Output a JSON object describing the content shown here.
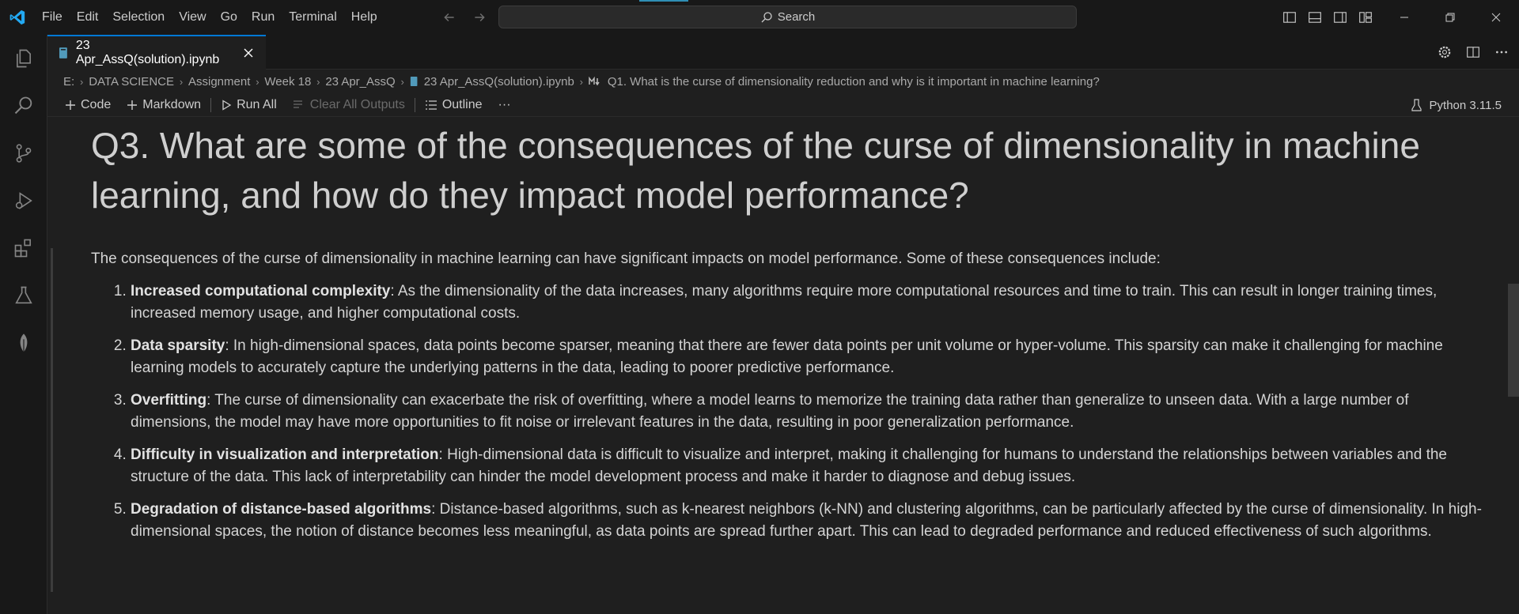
{
  "menu": [
    "File",
    "Edit",
    "Selection",
    "View",
    "Go",
    "Run",
    "Terminal",
    "Help"
  ],
  "search": {
    "label": "Search"
  },
  "tab": {
    "label": "23 Apr_AssQ(solution).ipynb"
  },
  "breadcrumb": {
    "items": [
      "E:",
      "DATA SCIENCE",
      "Assignment",
      "Week 18",
      "23 Apr_AssQ",
      "23 Apr_AssQ(solution).ipynb",
      "Q1. What is the curse of dimensionality reduction and why is it important in machine learning?"
    ]
  },
  "toolbar": {
    "code": "Code",
    "markdown": "Markdown",
    "run_all": "Run All",
    "clear_outputs": "Clear All Outputs",
    "outline": "Outline",
    "more": "···",
    "kernel": "Python 3.11.5"
  },
  "cell": {
    "heading": "Q3. What are some of the consequences of the curse of dimensionality in machine learning, and how do they impact model performance?",
    "intro": "The consequences of the curse of dimensionality in machine learning can have significant impacts on model performance. Some of these consequences include:",
    "items": [
      {
        "term": "Increased computational complexity",
        "text": ": As the dimensionality of the data increases, many algorithms require more computational resources and time to train. This can result in longer training times, increased memory usage, and higher computational costs."
      },
      {
        "term": "Data sparsity",
        "text": ": In high-dimensional spaces, data points become sparser, meaning that there are fewer data points per unit volume or hyper-volume. This sparsity can make it challenging for machine learning models to accurately capture the underlying patterns in the data, leading to poorer predictive performance."
      },
      {
        "term": "Overfitting",
        "text": ": The curse of dimensionality can exacerbate the risk of overfitting, where a model learns to memorize the training data rather than generalize to unseen data. With a large number of dimensions, the model may have more opportunities to fit noise or irrelevant features in the data, resulting in poor generalization performance."
      },
      {
        "term": "Difficulty in visualization and interpretation",
        "text": ": High-dimensional data is difficult to visualize and interpret, making it challenging for humans to understand the relationships between variables and the structure of the data. This lack of interpretability can hinder the model development process and make it harder to diagnose and debug issues."
      },
      {
        "term": "Degradation of distance-based algorithms",
        "text": ": Distance-based algorithms, such as k-nearest neighbors (k-NN) and clustering algorithms, can be particularly affected by the curse of dimensionality. In high-dimensional spaces, the notion of distance becomes less meaningful, as data points are spread further apart. This can lead to degraded performance and reduced effectiveness of such algorithms."
      }
    ]
  },
  "colors": {
    "accent": "#0078d4",
    "logo": "#23a9f2",
    "background": "#1f1f1f"
  }
}
